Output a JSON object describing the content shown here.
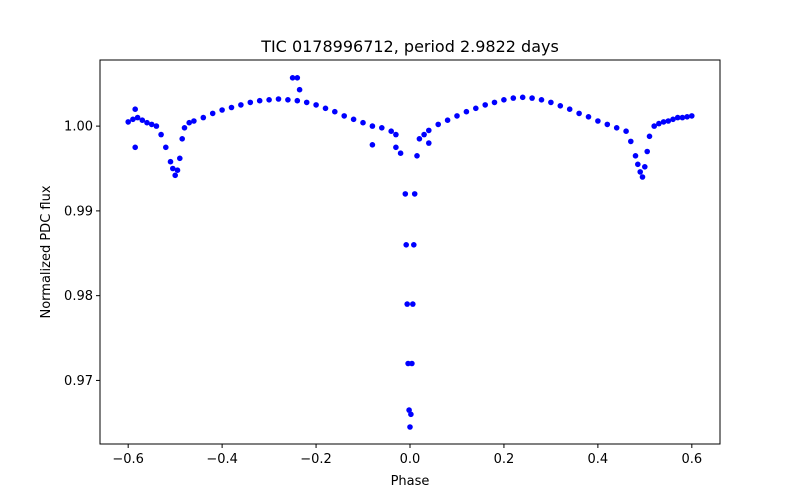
{
  "chart_data": {
    "type": "scatter",
    "title": "TIC 0178996712, period 2.9822 days",
    "xlabel": "Phase",
    "ylabel": "Normalized PDC flux",
    "xlim": [
      -0.66,
      0.66
    ],
    "ylim": [
      0.9625,
      1.0078
    ],
    "x_ticks": [
      -0.6,
      -0.4,
      -0.2,
      0.0,
      0.2,
      0.4,
      0.6
    ],
    "x_tick_labels": [
      "−0.6",
      "−0.4",
      "−0.2",
      "0.0",
      "0.2",
      "0.4",
      "0.6"
    ],
    "y_ticks": [
      0.97,
      0.98,
      0.99,
      1.0
    ],
    "y_tick_labels": [
      "0.97",
      "0.98",
      "0.99",
      "1.00"
    ],
    "grid": false,
    "marker_color": "#0000ff",
    "series": [
      {
        "x": [
          -0.6,
          -0.59,
          -0.58,
          -0.57,
          -0.56,
          -0.55,
          -0.54,
          -0.53,
          -0.52,
          -0.51,
          -0.505,
          -0.5,
          -0.495,
          -0.49,
          -0.485,
          -0.48,
          -0.47,
          -0.46,
          -0.44,
          -0.42,
          -0.4,
          -0.38,
          -0.36,
          -0.34,
          -0.32,
          -0.3,
          -0.28,
          -0.26,
          -0.24,
          -0.22,
          -0.2,
          -0.18,
          -0.16,
          -0.14,
          -0.12,
          -0.1,
          -0.08,
          -0.06,
          -0.04,
          -0.03,
          -0.02,
          -0.01,
          -0.008,
          -0.006,
          -0.004,
          -0.002,
          0.0,
          0.002,
          0.004,
          0.006,
          0.008,
          0.01,
          0.015,
          0.02,
          0.03,
          0.04,
          0.06,
          0.08,
          0.1,
          0.12,
          0.14,
          0.16,
          0.18,
          0.2,
          0.22,
          0.24,
          0.26,
          0.28,
          0.3,
          0.32,
          0.34,
          0.36,
          0.38,
          0.4,
          0.42,
          0.44,
          0.46,
          0.47,
          0.48,
          0.485,
          0.49,
          0.495,
          0.5,
          0.505,
          0.51,
          0.52,
          0.53,
          0.54,
          0.55,
          0.56,
          0.57,
          0.58,
          0.59,
          0.6,
          -0.25,
          -0.24,
          -0.235,
          -0.585,
          -0.585,
          -0.03,
          -0.08,
          0.04
        ],
        "y": [
          1.0005,
          1.0008,
          1.001,
          1.0007,
          1.0004,
          1.0002,
          1.0,
          0.999,
          0.9975,
          0.9958,
          0.995,
          0.9942,
          0.9948,
          0.9962,
          0.9985,
          0.9998,
          1.0004,
          1.0006,
          1.001,
          1.0015,
          1.0019,
          1.0022,
          1.0025,
          1.0028,
          1.003,
          1.0031,
          1.0032,
          1.0031,
          1.003,
          1.0028,
          1.0025,
          1.0021,
          1.0017,
          1.0012,
          1.0008,
          1.0004,
          1.0,
          0.9998,
          0.9994,
          0.999,
          0.9968,
          0.992,
          0.986,
          0.979,
          0.972,
          0.9665,
          0.9645,
          0.966,
          0.972,
          0.979,
          0.986,
          0.992,
          0.9965,
          0.9985,
          0.999,
          0.9995,
          1.0002,
          1.0007,
          1.0012,
          1.0017,
          1.0021,
          1.0025,
          1.0028,
          1.0031,
          1.0033,
          1.0034,
          1.0033,
          1.0031,
          1.0028,
          1.0024,
          1.002,
          1.0015,
          1.0011,
          1.0006,
          1.0002,
          0.9998,
          0.9994,
          0.9982,
          0.9965,
          0.9955,
          0.9946,
          0.994,
          0.9952,
          0.997,
          0.9988,
          1.0,
          1.0003,
          1.0005,
          1.0006,
          1.0008,
          1.001,
          1.001,
          1.0011,
          1.0012,
          1.0057,
          1.0057,
          1.0043,
          1.002,
          0.9975,
          0.9975,
          0.9978,
          0.998
        ]
      }
    ]
  }
}
